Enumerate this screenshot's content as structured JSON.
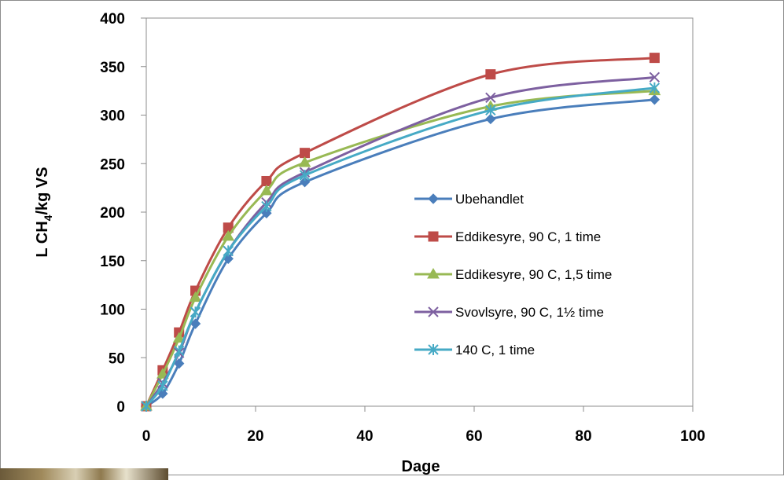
{
  "chart_data": {
    "type": "line",
    "title": "",
    "xlabel": "Dage",
    "ylabel_parts": {
      "main": "L CH",
      "sub": "4",
      "tail": "/kg VS"
    },
    "xlim": [
      0,
      100
    ],
    "ylim": [
      0,
      400
    ],
    "x_ticks": [
      0,
      20,
      40,
      60,
      80,
      100
    ],
    "y_ticks": [
      0,
      50,
      100,
      150,
      200,
      250,
      300,
      350,
      400
    ],
    "grid": false,
    "legend_position": "center-right",
    "x": [
      0,
      3,
      6,
      9,
      15,
      22,
      29,
      63,
      93
    ],
    "series": [
      {
        "name": "Ubehandlet",
        "color": "#4a7ebb",
        "marker": "diamond",
        "values": [
          0,
          13,
          44,
          85,
          152,
          199,
          231,
          296,
          316
        ]
      },
      {
        "name": "Eddikesyre, 90 C, 1 time",
        "color": "#be4b48",
        "marker": "square",
        "values": [
          0,
          37,
          76,
          119,
          184,
          232,
          261,
          342,
          359
        ]
      },
      {
        "name": "Eddikesyre, 90 C, 1,5 time",
        "color": "#98b954",
        "marker": "triangle",
        "values": [
          0,
          33,
          70,
          112,
          175,
          222,
          251,
          309,
          325
        ]
      },
      {
        "name": "Svovlsyre, 90 C, 1½ time",
        "color": "#7d60a0",
        "marker": "x",
        "values": [
          0,
          24,
          55,
          97,
          160,
          210,
          241,
          318,
          339
        ]
      },
      {
        "name": "140 C, 1 time",
        "color": "#46aac5",
        "marker": "star",
        "values": [
          0,
          21,
          57,
          97,
          160,
          206,
          238,
          305,
          328
        ]
      }
    ]
  }
}
